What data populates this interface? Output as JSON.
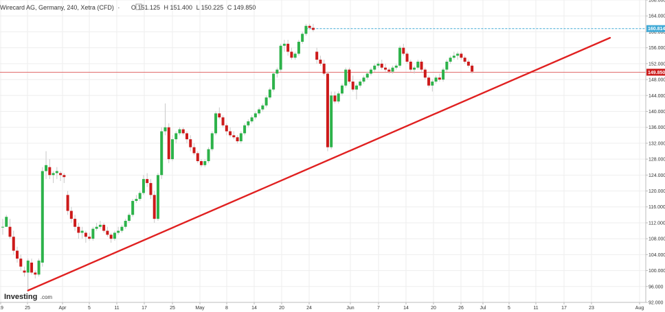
{
  "header": {
    "symbol_title": "Wirecard AG, Germany, 240, Xetra (CFD)",
    "separator": "·",
    "open_label": "O",
    "open_value": "151.125",
    "high_label": "H",
    "high_value": "151.400",
    "low_label": "L",
    "low_value": "150.225",
    "close_label": "C",
    "close_value": "149.850"
  },
  "logo": {
    "brand": "Investing",
    "suffix": ".com"
  },
  "colors": {
    "up_candle": "#2db24a",
    "down_candle": "#cc1a1a",
    "trend_line": "#e02020",
    "price_line": "#e06666",
    "resistance_line": "#3fa9d6",
    "grid": "#eeeeee",
    "axis": "#bbbbbb"
  },
  "chart_data": {
    "type": "candlestick",
    "ylim": [
      92,
      168
    ],
    "y_ticks": [
      "92.000",
      "96.000",
      "100.000",
      "104.000",
      "108.000",
      "112.000",
      "116.000",
      "120.000",
      "124.000",
      "128.000",
      "132.000",
      "136.000",
      "140.000",
      "144.000",
      "148.000",
      "152.000",
      "156.000",
      "160.000",
      "164.000",
      "168.000"
    ],
    "x_ticks": [
      "19",
      "25",
      "Apr",
      "5",
      "11",
      "17",
      "25",
      "May",
      "8",
      "14",
      "20",
      "24",
      "Jun",
      "7",
      "14",
      "20",
      "26",
      "Jul",
      "5",
      "11",
      "17",
      "23",
      "Aug"
    ],
    "current_price": "149.850",
    "resistance_price": "160.814",
    "trend_line": {
      "start_value": 95,
      "end_value": 158.5
    },
    "candles": [
      [
        111,
        113,
        109,
        111
      ],
      [
        111,
        114,
        111,
        113.5
      ],
      [
        111,
        113,
        108,
        108.5
      ],
      [
        108.5,
        110,
        104,
        105
      ],
      [
        105,
        106,
        102,
        103
      ],
      [
        103,
        104,
        100,
        101
      ],
      [
        100,
        101,
        98.5,
        99.5
      ],
      [
        99.5,
        103,
        95,
        102.5
      ],
      [
        102,
        103,
        99,
        99.5
      ],
      [
        99.5,
        100,
        98,
        99
      ],
      [
        99,
        103,
        98.5,
        102.5
      ],
      [
        102,
        126,
        101,
        125
      ],
      [
        125,
        130,
        123,
        126.5
      ],
      [
        126,
        128,
        123,
        124
      ],
      [
        124,
        125,
        122,
        124.5
      ],
      [
        124.5,
        126,
        123,
        125
      ],
      [
        124.5,
        125,
        122.5,
        124
      ],
      [
        124,
        124.5,
        122,
        123.5
      ],
      [
        119,
        120,
        114,
        115
      ],
      [
        115,
        116,
        112,
        113
      ],
      [
        113,
        114,
        110,
        111
      ],
      [
        111,
        112,
        108,
        109.5
      ],
      [
        109.5,
        111,
        108,
        110
      ],
      [
        109.5,
        110,
        107,
        108.5
      ],
      [
        108.5,
        109.5,
        107.5,
        108
      ],
      [
        108,
        111,
        107.5,
        110.5
      ],
      [
        110.5,
        112,
        110,
        111
      ],
      [
        111,
        112.5,
        110.5,
        111.5
      ],
      [
        111.5,
        112,
        109.5,
        110
      ],
      [
        110,
        111,
        108.5,
        109
      ],
      [
        109,
        109.5,
        107,
        108
      ],
      [
        108,
        110,
        107.5,
        109.5
      ],
      [
        109.5,
        111,
        109,
        110
      ],
      [
        110,
        111.5,
        109.5,
        111
      ],
      [
        111,
        113,
        110.5,
        112.5
      ],
      [
        112.5,
        114.5,
        112,
        114
      ],
      [
        114,
        118,
        113.5,
        117.5
      ],
      [
        117.5,
        119,
        117,
        118
      ],
      [
        118,
        120,
        117.5,
        119.5
      ],
      [
        119.5,
        124,
        119,
        123
      ],
      [
        123,
        124.5,
        121,
        122
      ],
      [
        122,
        123,
        118,
        119
      ],
      [
        119,
        120,
        112,
        113
      ],
      [
        113,
        124.5,
        112.5,
        124
      ],
      [
        124,
        136,
        123,
        135
      ],
      [
        135,
        142,
        134,
        136
      ],
      [
        136,
        137,
        127,
        128
      ],
      [
        128,
        134,
        127.5,
        133
      ],
      [
        133,
        135,
        132,
        134.5
      ],
      [
        134.5,
        136,
        134,
        135.5
      ],
      [
        135.5,
        136,
        134,
        134.5
      ],
      [
        134.5,
        135,
        132,
        133
      ],
      [
        133,
        134,
        130,
        131
      ],
      [
        131,
        132,
        129,
        129.5
      ],
      [
        129.5,
        130,
        127,
        127.5
      ],
      [
        127.5,
        128,
        126,
        126.5
      ],
      [
        126.5,
        128,
        126,
        127.5
      ],
      [
        127.5,
        131,
        127,
        130.5
      ],
      [
        130.5,
        135,
        130,
        134.5
      ],
      [
        134.5,
        140,
        134,
        139.5
      ],
      [
        139.5,
        141,
        138,
        138.5
      ],
      [
        138.5,
        139,
        136,
        136.5
      ],
      [
        136.5,
        137,
        134,
        135
      ],
      [
        135,
        136,
        133.5,
        134
      ],
      [
        134,
        135,
        133,
        133.5
      ],
      [
        133.5,
        134,
        132,
        132.5
      ],
      [
        132.5,
        135,
        132,
        134.5
      ],
      [
        134.5,
        137,
        134,
        136.5
      ],
      [
        136.5,
        138,
        136,
        137.5
      ],
      [
        137.5,
        139,
        137,
        138.5
      ],
      [
        138.5,
        140,
        138,
        139.5
      ],
      [
        139.5,
        141,
        139,
        140.5
      ],
      [
        140.5,
        142,
        140,
        141.5
      ],
      [
        141.5,
        144,
        141,
        143.5
      ],
      [
        143.5,
        146,
        143,
        145.5
      ],
      [
        145.5,
        150,
        145,
        149.5
      ],
      [
        149.5,
        151,
        148.5,
        150.5
      ],
      [
        150.5,
        157,
        150,
        156.5
      ],
      [
        156.5,
        158,
        155,
        157
      ],
      [
        157,
        158,
        154,
        155
      ],
      [
        155,
        156,
        153,
        153.5
      ],
      [
        153.5,
        155,
        153,
        154.5
      ],
      [
        154.5,
        158,
        154,
        157.5
      ],
      [
        157.5,
        160,
        157,
        159.5
      ],
      [
        159.5,
        162,
        159,
        161.5
      ],
      [
        161.5,
        162,
        160.5,
        161
      ],
      [
        161,
        162,
        160,
        160.5
      ],
      [
        155,
        156,
        152,
        153
      ],
      [
        153,
        154,
        151.5,
        152
      ],
      [
        152,
        153,
        149,
        149.5
      ],
      [
        149.5,
        150,
        130,
        131
      ],
      [
        131,
        145,
        130.5,
        144
      ],
      [
        144,
        145,
        142,
        142.5
      ],
      [
        142.5,
        145,
        142,
        144.5
      ],
      [
        144.5,
        147,
        144,
        146.5
      ],
      [
        146.5,
        151,
        146,
        150.5
      ],
      [
        150.5,
        151,
        147,
        147.5
      ],
      [
        147.5,
        149,
        145,
        145.5
      ],
      [
        145.5,
        147,
        143,
        146.5
      ],
      [
        146.5,
        148,
        146,
        147.5
      ],
      [
        147.5,
        149,
        147,
        148.5
      ],
      [
        148.5,
        150,
        148,
        149.5
      ],
      [
        149.5,
        151,
        149,
        150.5
      ],
      [
        150.5,
        152,
        150,
        151.5
      ],
      [
        151.5,
        152.5,
        151,
        152
      ],
      [
        152,
        153,
        150.5,
        151
      ],
      [
        151,
        152,
        150,
        150.5
      ],
      [
        150.5,
        151,
        149.5,
        150
      ],
      [
        150,
        151.5,
        149.5,
        151
      ],
      [
        151,
        152,
        150.5,
        151.5
      ],
      [
        151.5,
        156.5,
        151,
        156
      ],
      [
        156,
        157,
        154,
        154.5
      ],
      [
        154.5,
        155,
        152,
        152.5
      ],
      [
        152.5,
        153,
        150,
        150.5
      ],
      [
        150.5,
        151.5,
        149.5,
        151
      ],
      [
        151,
        153,
        150.5,
        152.5
      ],
      [
        152.5,
        153,
        150,
        150.5
      ],
      [
        150.5,
        151,
        148,
        148.5
      ],
      [
        148.5,
        149,
        146,
        146.5
      ],
      [
        146.5,
        148,
        145,
        147.5
      ],
      [
        147.5,
        149,
        147,
        148.5
      ],
      [
        148.5,
        149.5,
        147.5,
        148
      ],
      [
        148,
        151,
        147.5,
        150.5
      ],
      [
        150.5,
        153,
        150,
        152.5
      ],
      [
        152.5,
        154,
        152,
        153.5
      ],
      [
        153.5,
        155,
        153,
        154
      ],
      [
        154,
        155,
        153,
        154.5
      ],
      [
        154.5,
        155,
        153,
        153.5
      ],
      [
        153.5,
        154,
        152,
        152.5
      ],
      [
        152.5,
        153,
        151,
        151.5
      ],
      [
        151.5,
        152,
        149.5,
        150
      ]
    ]
  }
}
